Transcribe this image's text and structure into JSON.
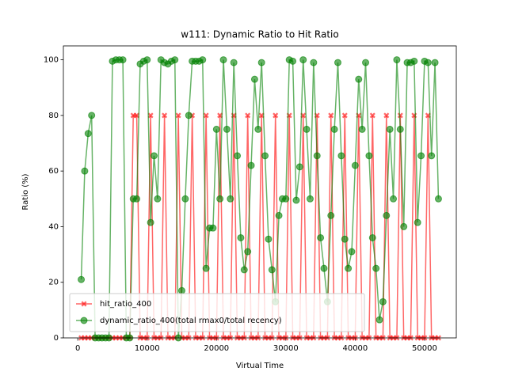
{
  "chart_data": {
    "type": "line",
    "title": "w111: Dynamic Ratio to Hit Ratio",
    "xlabel": "Virtual Time",
    "ylabel": "Ratio (%)",
    "x": [
      500,
      1000,
      1500,
      2000,
      2500,
      3000,
      3500,
      4000,
      4500,
      5000,
      5500,
      6000,
      6500,
      7000,
      7500,
      8000,
      8500,
      9000,
      9500,
      10000,
      10500,
      11000,
      11500,
      12000,
      12500,
      13000,
      13500,
      14000,
      14500,
      15000,
      15500,
      16000,
      16500,
      17000,
      17500,
      18000,
      18500,
      19000,
      19500,
      20000,
      20500,
      21000,
      21500,
      22000,
      22500,
      23000,
      23500,
      24000,
      24500,
      25000,
      25500,
      26000,
      26500,
      27000,
      27500,
      28000,
      28500,
      29000,
      29500,
      30000,
      30500,
      31000,
      31500,
      32000,
      32500,
      33000,
      33500,
      34000,
      34500,
      35000,
      35500,
      36000,
      36500,
      37000,
      37500,
      38000,
      38500,
      39000,
      39500,
      40000,
      40500,
      41000,
      41500,
      42000,
      42500,
      43000,
      43500,
      44000,
      44500,
      45000,
      45500,
      46000,
      46500,
      47000,
      47500,
      48000,
      48500,
      49000,
      49500,
      50000,
      50500,
      51000,
      51500,
      52000
    ],
    "series": [
      {
        "name": "hit_ratio_400",
        "color": "#ff0000",
        "marker": "x",
        "values": [
          0,
          0,
          0,
          0,
          0,
          0,
          0,
          0,
          0,
          0,
          0,
          0,
          0,
          0,
          0,
          80,
          80,
          0,
          0,
          0,
          80,
          0,
          0,
          0,
          80,
          0,
          0,
          0,
          80,
          0,
          0,
          0,
          80,
          0,
          0,
          0,
          80,
          0,
          0,
          0,
          80,
          0,
          0,
          0,
          80,
          0,
          0,
          0,
          80,
          0,
          0,
          0,
          80,
          0,
          0,
          0,
          80,
          0,
          0,
          0,
          80,
          0,
          0,
          0,
          80,
          0,
          0,
          0,
          80,
          0,
          0,
          0,
          80,
          0,
          0,
          0,
          80,
          0,
          0,
          0,
          80,
          0,
          0,
          0,
          80,
          0,
          0,
          0,
          80,
          0,
          0,
          0,
          80,
          0,
          0,
          0,
          80,
          0,
          0,
          0,
          80,
          0,
          0,
          0
        ]
      },
      {
        "name": "dynamic_ratio_400(total rmax0/total recency)",
        "color": "#008000",
        "marker": "o",
        "values": [
          21,
          60,
          73.5,
          80,
          0,
          0,
          0,
          0,
          0,
          99.5,
          100,
          100,
          100,
          0,
          0,
          50,
          50,
          98.5,
          99.5,
          100,
          41.5,
          65.5,
          50,
          100,
          99,
          98.5,
          99.5,
          100,
          0,
          17,
          50,
          80,
          99.5,
          99.5,
          99.5,
          100,
          25,
          39.5,
          39.5,
          75,
          50,
          100,
          75,
          50,
          99,
          65.5,
          36,
          24.5,
          31,
          62,
          93,
          75,
          99,
          65.5,
          35.5,
          24.5,
          13,
          44,
          50,
          50,
          100,
          99.5,
          49.5,
          61.5,
          100,
          75,
          50,
          99,
          65.5,
          36,
          25,
          13,
          44,
          75,
          99,
          65.5,
          35.5,
          25,
          31,
          62,
          93,
          75,
          99,
          65.5,
          36,
          25,
          6.5,
          13,
          44,
          75,
          50,
          100,
          75,
          40,
          99,
          99,
          99.5,
          41.5,
          65.5,
          99.5,
          99,
          65.5,
          99,
          50
        ]
      }
    ],
    "xlim": [
      -2075,
      54575
    ],
    "ylim": [
      0,
      105
    ],
    "xticks": [
      0,
      10000,
      20000,
      30000,
      40000,
      50000
    ],
    "yticks": [
      0,
      20,
      40,
      60,
      80,
      100
    ],
    "legend": "lower left",
    "alpha": 0.6
  }
}
